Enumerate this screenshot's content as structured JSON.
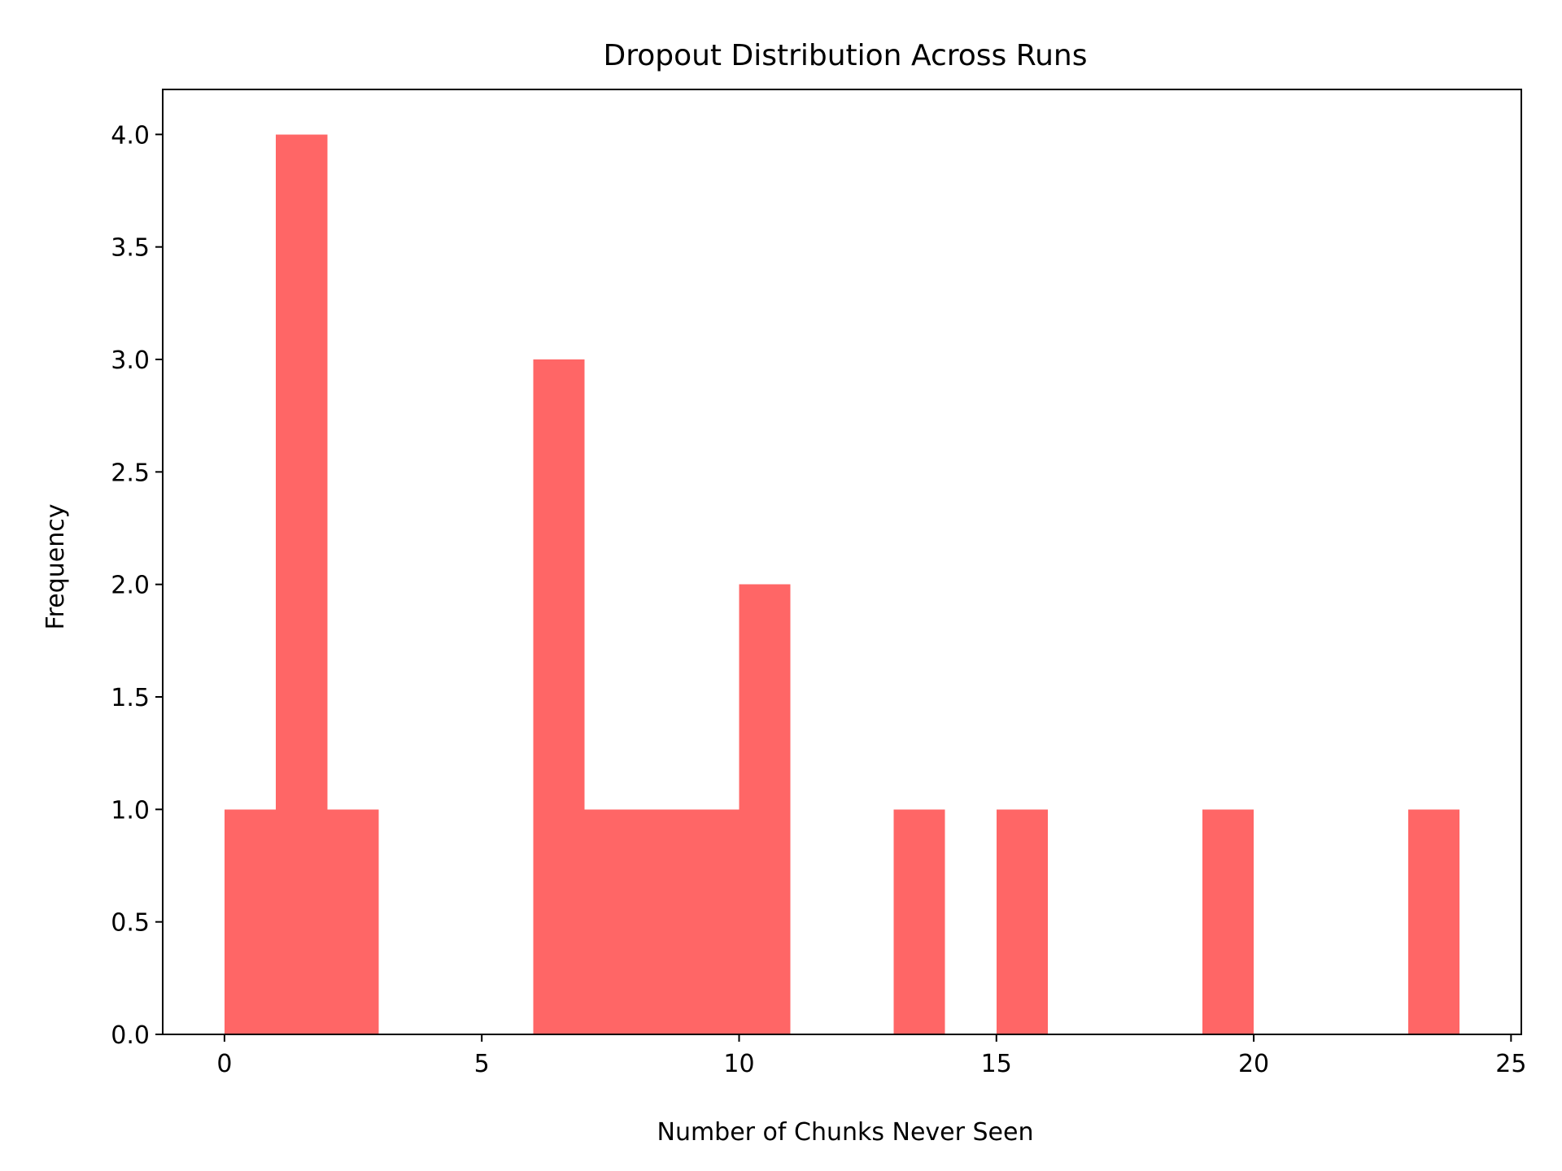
{
  "chart_data": {
    "type": "bar",
    "subtype": "histogram",
    "title": "Dropout Distribution Across Runs",
    "xlabel": "Number of Chunks Never Seen",
    "ylabel": "Frequency",
    "xlim": [
      -1.2,
      25.2
    ],
    "ylim": [
      0,
      4.2
    ],
    "xticks": [
      0,
      5,
      10,
      15,
      20,
      25
    ],
    "yticks": [
      0.0,
      0.5,
      1.0,
      1.5,
      2.0,
      2.5,
      3.0,
      3.5,
      4.0
    ],
    "xtick_labels": [
      "0",
      "5",
      "10",
      "15",
      "20",
      "25"
    ],
    "ytick_labels": [
      "0.0",
      "0.5",
      "1.0",
      "1.5",
      "2.0",
      "2.5",
      "3.0",
      "3.5",
      "4.0"
    ],
    "bar_color": "#ff6666",
    "grid": false,
    "legend": "none",
    "bins": [
      {
        "x0": 0,
        "x1": 1,
        "count": 1
      },
      {
        "x0": 1,
        "x1": 2,
        "count": 4
      },
      {
        "x0": 2,
        "x1": 3,
        "count": 1
      },
      {
        "x0": 3,
        "x1": 4,
        "count": 0
      },
      {
        "x0": 4,
        "x1": 5,
        "count": 0
      },
      {
        "x0": 5,
        "x1": 6,
        "count": 0
      },
      {
        "x0": 6,
        "x1": 7,
        "count": 3
      },
      {
        "x0": 7,
        "x1": 8,
        "count": 1
      },
      {
        "x0": 8,
        "x1": 9,
        "count": 1
      },
      {
        "x0": 9,
        "x1": 10,
        "count": 1
      },
      {
        "x0": 10,
        "x1": 11,
        "count": 2
      },
      {
        "x0": 11,
        "x1": 12,
        "count": 0
      },
      {
        "x0": 12,
        "x1": 13,
        "count": 0
      },
      {
        "x0": 13,
        "x1": 14,
        "count": 1
      },
      {
        "x0": 14,
        "x1": 15,
        "count": 0
      },
      {
        "x0": 15,
        "x1": 16,
        "count": 1
      },
      {
        "x0": 16,
        "x1": 17,
        "count": 0
      },
      {
        "x0": 17,
        "x1": 18,
        "count": 0
      },
      {
        "x0": 18,
        "x1": 19,
        "count": 0
      },
      {
        "x0": 19,
        "x1": 20,
        "count": 1
      },
      {
        "x0": 20,
        "x1": 21,
        "count": 0
      },
      {
        "x0": 21,
        "x1": 22,
        "count": 0
      },
      {
        "x0": 22,
        "x1": 23,
        "count": 0
      },
      {
        "x0": 23,
        "x1": 24,
        "count": 1
      }
    ]
  }
}
